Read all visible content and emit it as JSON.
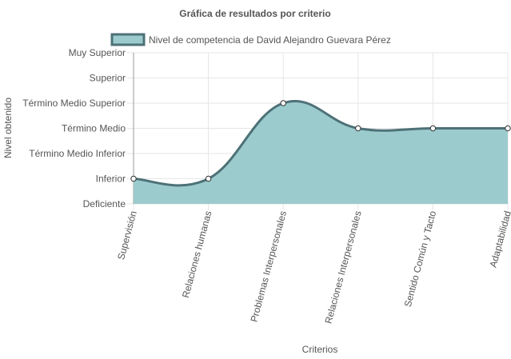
{
  "colors": {
    "fill": "#9ccbcd",
    "line": "#4d7177",
    "grid": "#e6e6e6",
    "axis": "#999999",
    "text": "#555555",
    "point": "#ffffff"
  },
  "chart_data": {
    "type": "area",
    "title": "Gráfica de resultados por criterio",
    "xlabel": "Criterios",
    "ylabel": "Nivel obtenido",
    "legend_position": "top",
    "grid": true,
    "categories": [
      "Supervisión",
      "Relaciones humanas",
      "Problemas Interpersonales",
      "Relaciones Interpersonales",
      "Sentido Común y Tacto",
      "Adaptabilidad"
    ],
    "y_levels": [
      "Deficiente",
      "Inferior",
      "Término Medio Inferior",
      "Término Medio",
      "Término Medio Superior",
      "Superior",
      "Muy Superior"
    ],
    "ylim": [
      0,
      6
    ],
    "series": [
      {
        "name": "Nivel de competencia de David Alejandro Guevara Pérez",
        "values": [
          1,
          1,
          4,
          3,
          3,
          3
        ]
      }
    ]
  }
}
